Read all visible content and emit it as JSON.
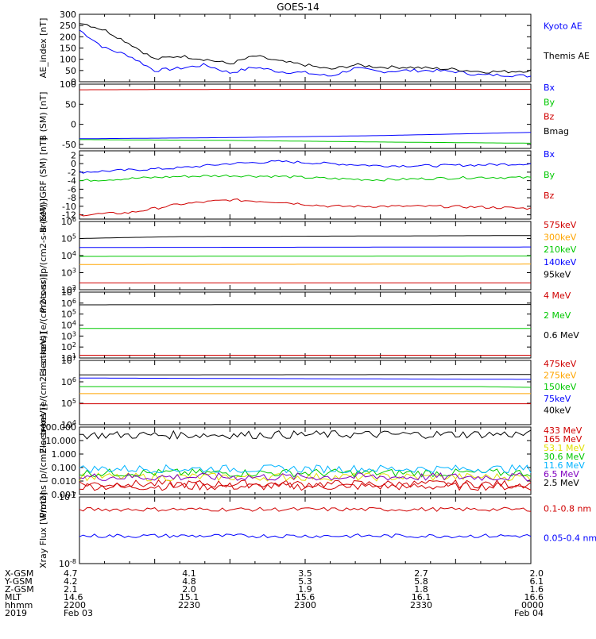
{
  "title": "GOES-14",
  "colors": {
    "black": "#000000",
    "blue": "#0000ff",
    "green": "#00c800",
    "red": "#d00000",
    "orange": "#ffa500",
    "cyan": "#00b4ff",
    "purple": "#8000c0",
    "yellow": "#e0e000"
  },
  "chart_data": [
    {
      "type": "line",
      "ylabel": "AE_index [nT]",
      "ylim": [
        0,
        300
      ],
      "yticks": [
        "300",
        "250",
        "200",
        "150",
        "100",
        "50",
        "0"
      ],
      "series": [
        {
          "name": "Kyoto AE",
          "color": "#0000ff",
          "x": [
            0,
            5,
            10,
            15,
            20,
            25,
            30,
            35,
            40,
            45,
            50,
            55,
            60,
            65,
            70,
            75,
            80,
            85,
            90
          ],
          "y": [
            230,
            150,
            115,
            50,
            60,
            75,
            40,
            65,
            45,
            40,
            25,
            60,
            45,
            50,
            50,
            45,
            30,
            30,
            25
          ]
        },
        {
          "name": "Themis AE",
          "color": "#000000",
          "x": [
            0,
            5,
            10,
            15,
            20,
            25,
            30,
            35,
            40,
            45,
            50,
            55,
            60,
            65,
            70,
            75,
            80,
            85,
            90
          ],
          "y": [
            265,
            230,
            170,
            100,
            115,
            100,
            80,
            115,
            90,
            75,
            55,
            75,
            65,
            65,
            60,
            55,
            45,
            45,
            50
          ]
        }
      ]
    },
    {
      "type": "line",
      "ylabel": "B (SM) [nT]",
      "ylim": [
        -60,
        100
      ],
      "yticks": [
        "100",
        "50",
        "0",
        "-50"
      ],
      "series": [
        {
          "name": "Bx",
          "color": "#0000ff",
          "x": [
            0,
            30,
            60,
            90
          ],
          "y": [
            -36,
            -33,
            -28,
            -20
          ]
        },
        {
          "name": "By",
          "color": "#00c800",
          "x": [
            0,
            30,
            60,
            90
          ],
          "y": [
            -38,
            -40,
            -44,
            -47
          ]
        },
        {
          "name": "Bz",
          "color": "#d00000",
          "x": [
            0,
            30,
            60,
            90
          ],
          "y": [
            86,
            87,
            87,
            87
          ]
        },
        {
          "name": "Bmag",
          "color": "#000000",
          "x": [
            0,
            30,
            60,
            90
          ],
          "y": [
            100,
            101,
            101,
            102
          ]
        }
      ]
    },
    {
      "type": "line",
      "ylabel": "B (SM)-IGRF (SM) [nT]",
      "ylim": [
        -13,
        3
      ],
      "yticks": [
        "2",
        "0",
        "-2",
        "-4",
        "-6",
        "-8",
        "-10",
        "-12"
      ],
      "series": [
        {
          "name": "Bx",
          "color": "#0000ff",
          "x": [
            0,
            10,
            20,
            30,
            40,
            50,
            60,
            70,
            80,
            90
          ],
          "y": [
            -2,
            -1.5,
            -1,
            0,
            0.5,
            0,
            -0.5,
            -0.5,
            -0.3,
            0
          ]
        },
        {
          "name": "By",
          "color": "#00c800",
          "x": [
            0,
            10,
            20,
            30,
            40,
            50,
            60,
            70,
            80,
            90
          ],
          "y": [
            -4,
            -3.5,
            -3,
            -2.8,
            -3,
            -3.5,
            -3.8,
            -3.5,
            -3.2,
            -3.3
          ]
        },
        {
          "name": "Bz",
          "color": "#d00000",
          "x": [
            0,
            10,
            20,
            30,
            40,
            50,
            60,
            70,
            80,
            90
          ],
          "y": [
            -12,
            -11.5,
            -9.5,
            -8.5,
            -9,
            -10,
            -10,
            -10,
            -10.2,
            -10.5
          ]
        }
      ]
    },
    {
      "type": "line",
      "ylabel": "Protons [p/(cm2-s-sr-keV)]",
      "ylog": true,
      "ylim": [
        100,
        1000000
      ],
      "yticks": [
        "10^6",
        "10^5",
        "10^4",
        "10^3",
        "10^2"
      ],
      "series": [
        {
          "name": "575keV",
          "color": "#d00000",
          "x": [
            0,
            90
          ],
          "y": [
            250,
            250
          ]
        },
        {
          "name": "300keV",
          "color": "#ffa500",
          "x": [
            0,
            90
          ],
          "y": [
            3000,
            3200
          ]
        },
        {
          "name": "210keV",
          "color": "#00c800",
          "x": [
            0,
            90
          ],
          "y": [
            9000,
            9500
          ]
        },
        {
          "name": "140keV",
          "color": "#0000ff",
          "x": [
            0,
            90
          ],
          "y": [
            30000,
            32000
          ]
        },
        {
          "name": "95keV",
          "color": "#000000",
          "x": [
            0,
            20,
            90
          ],
          "y": [
            100000,
            130000,
            150000
          ]
        }
      ]
    },
    {
      "type": "line",
      "ylabel": "Electrons [e/(cm2-s-sr)]",
      "ylog": true,
      "ylim": [
        10,
        10000000
      ],
      "yticks": [
        "10^7",
        "10^6",
        "10^5",
        "10^4",
        "10^3",
        "10^2",
        "10^1"
      ],
      "series": [
        {
          "name": "4 MeV",
          "color": "#d00000",
          "x": [
            0,
            90
          ],
          "y": [
            18,
            18
          ]
        },
        {
          "name": "2 MeV",
          "color": "#00c800",
          "x": [
            0,
            90
          ],
          "y": [
            5000,
            5000
          ]
        },
        {
          "name": "0.6 MeV",
          "color": "#000000",
          "x": [
            0,
            90
          ],
          "y": [
            700000,
            750000
          ]
        }
      ]
    },
    {
      "type": "line",
      "ylabel": "Electrons [e/(cm2-s-sr-keV)]",
      "ylog": true,
      "ylim": [
        10000,
        10000000
      ],
      "yticks": [
        "10^7",
        "10^6",
        "10^5",
        "10^4"
      ],
      "series": [
        {
          "name": "475keV",
          "color": "#d00000",
          "x": [
            0,
            90
          ],
          "y": [
            95000,
            95000
          ]
        },
        {
          "name": "275keV",
          "color": "#ffa500",
          "x": [
            0,
            90
          ],
          "y": [
            280000,
            280000
          ]
        },
        {
          "name": "150keV",
          "color": "#00c800",
          "x": [
            0,
            80,
            90
          ],
          "y": [
            600000,
            600000,
            550000
          ]
        },
        {
          "name": "75keV",
          "color": "#0000ff",
          "x": [
            0,
            90
          ],
          "y": [
            1500000,
            1300000
          ]
        },
        {
          "name": "40keV",
          "color": "#000000",
          "x": [
            0,
            90
          ],
          "y": [
            2100000,
            2200000
          ]
        }
      ]
    },
    {
      "type": "line",
      "ylabel": "Protons [p/(cm2-s-sr-keV)]",
      "ylog": true,
      "ylim": [
        0.001,
        100
      ],
      "yticks": [
        "100.000",
        "10.000",
        "1.000",
        "0.100",
        "0.010",
        "0.001"
      ],
      "series": [
        {
          "name": "433 MeV",
          "color": "#d00000",
          "x": [
            0,
            90
          ],
          "y": [
            0.004,
            0.004
          ]
        },
        {
          "name": "165 MeV",
          "color": "#d00000",
          "x": [
            0,
            90
          ],
          "y": [
            0.006,
            0.006
          ]
        },
        {
          "name": "53.1 MeV",
          "color": "#e0e000",
          "x": [
            0,
            90
          ],
          "y": [
            0.02,
            0.02
          ]
        },
        {
          "name": "30.6 MeV",
          "color": "#00c800",
          "x": [
            0,
            90
          ],
          "y": [
            0.04,
            0.04
          ]
        },
        {
          "name": "11.6 MeV",
          "color": "#00b4ff",
          "x": [
            0,
            90
          ],
          "y": [
            0.08,
            0.08
          ]
        },
        {
          "name": "6.5 MeV",
          "color": "#8000c0",
          "x": [
            0,
            90
          ],
          "y": [
            0.02,
            0.02
          ]
        },
        {
          "name": "2.5 MeV",
          "color": "#000000",
          "x": [
            0,
            90
          ],
          "y": [
            25,
            30
          ]
        }
      ]
    },
    {
      "type": "line",
      "ylabel": "Xray Flux [W/m2]",
      "ylog": true,
      "ylim": [
        1e-08,
        1e-07
      ],
      "yticks": [
        "10^-7",
        "10^-8"
      ],
      "series": [
        {
          "name": "0.1-0.8 nm",
          "color": "#d00000",
          "x": [
            0,
            90
          ],
          "y": [
            6.5e-08,
            6.5e-08
          ]
        },
        {
          "name": "0.05-0.4 nm",
          "color": "#0000ff",
          "x": [
            0,
            90
          ],
          "y": [
            2.6e-08,
            2.6e-08
          ]
        }
      ]
    }
  ],
  "footer": {
    "row_labels": [
      "X-GSM",
      "Y-GSM",
      "Z-GSM",
      "MLT",
      "hhmm",
      "2019"
    ],
    "columns": [
      {
        "values": [
          "4.7",
          "4.2",
          "2.1",
          "14.6",
          "2200",
          "Feb 03"
        ]
      },
      {
        "values": [
          "4.1",
          "4.8",
          "2.0",
          "15.1",
          "2230",
          ""
        ]
      },
      {
        "values": [
          "3.5",
          "5.3",
          "1.9",
          "15.6",
          "2300",
          ""
        ]
      },
      {
        "values": [
          "2.7",
          "5.8",
          "1.8",
          "16.1",
          "2330",
          ""
        ]
      },
      {
        "values": [
          "2.0",
          "6.1",
          "1.6",
          "16.6",
          "0000",
          "Feb 04"
        ]
      }
    ]
  }
}
